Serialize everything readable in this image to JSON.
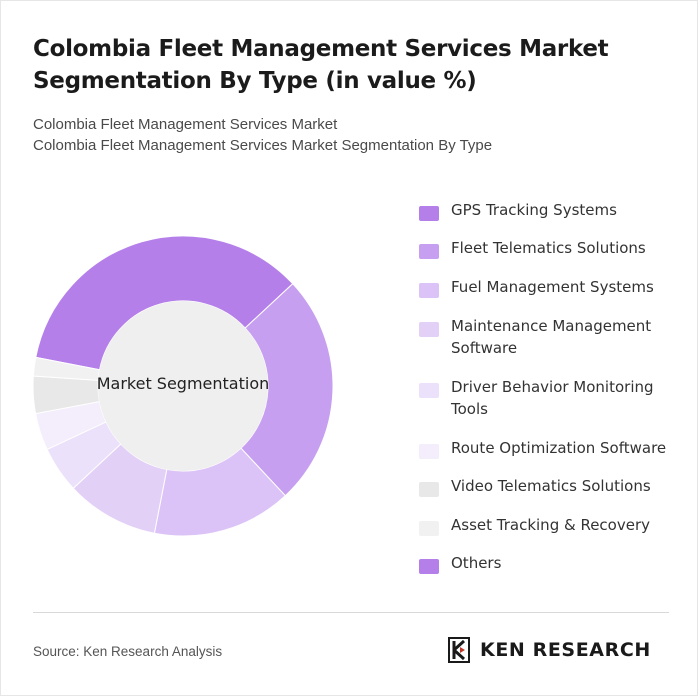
{
  "title": "Colombia Fleet Management Services Market Segmentation By Type (in value %)",
  "subtitle_lines": [
    "Colombia Fleet Management Services Market",
    "Colombia Fleet Management Services Market Segmentation By Type"
  ],
  "center_label": "Market Segmentation",
  "source": "Source: Ken Research Analysis",
  "logo_text": "KEN RESEARCH",
  "chart_data": {
    "type": "pie",
    "donut": true,
    "title": "Colombia Fleet Management Services Market Segmentation By Type (in value %)",
    "legend_position": "right",
    "segments": [
      {
        "name": "GPS Tracking Systems",
        "value": 35,
        "color": "#b57fea"
      },
      {
        "name": "Fleet Telematics Solutions",
        "value": 25,
        "color": "#c69ff0"
      },
      {
        "name": "Fuel Management Systems",
        "value": 15,
        "color": "#dcc3f7"
      },
      {
        "name": "Maintenance Management Software",
        "value": 10,
        "color": "#e2d0f7"
      },
      {
        "name": "Driver Behavior Monitoring Tools",
        "value": 5,
        "color": "#ece1fa"
      },
      {
        "name": "Route Optimization Software",
        "value": 4,
        "color": "#f3edfc"
      },
      {
        "name": "Video Telematics Solutions",
        "value": 4,
        "color": "#e8e8e8"
      },
      {
        "name": "Asset Tracking & Recovery",
        "value": 2,
        "color": "#f1f1f1"
      },
      {
        "name": "Others",
        "value": 0,
        "color": "#b57fea"
      }
    ]
  }
}
